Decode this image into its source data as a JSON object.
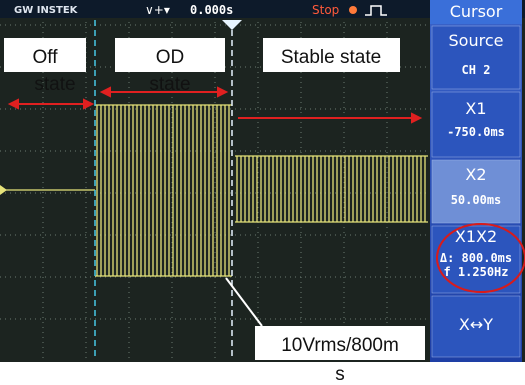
{
  "header": {
    "brand": "GW INSTEK",
    "timebase": "0.000s",
    "status": "Stop"
  },
  "menu": {
    "title": "Cursor",
    "items": [
      {
        "label": "Source",
        "value": "CH 2"
      },
      {
        "label": "X1",
        "value": "-750.0ms"
      },
      {
        "label": "X2",
        "value": "50.00ms"
      },
      {
        "label": "X1X2",
        "value": "Δ: 800.0ms",
        "extra": "f 1.250Hz"
      },
      {
        "label": "X↔Y"
      }
    ]
  },
  "annotations": {
    "off": [
      "Off",
      "state"
    ],
    "od": [
      "OD",
      "state"
    ],
    "stable": "Stable state",
    "measure": "10Vrms/800m",
    "measure_tail": "s"
  }
}
